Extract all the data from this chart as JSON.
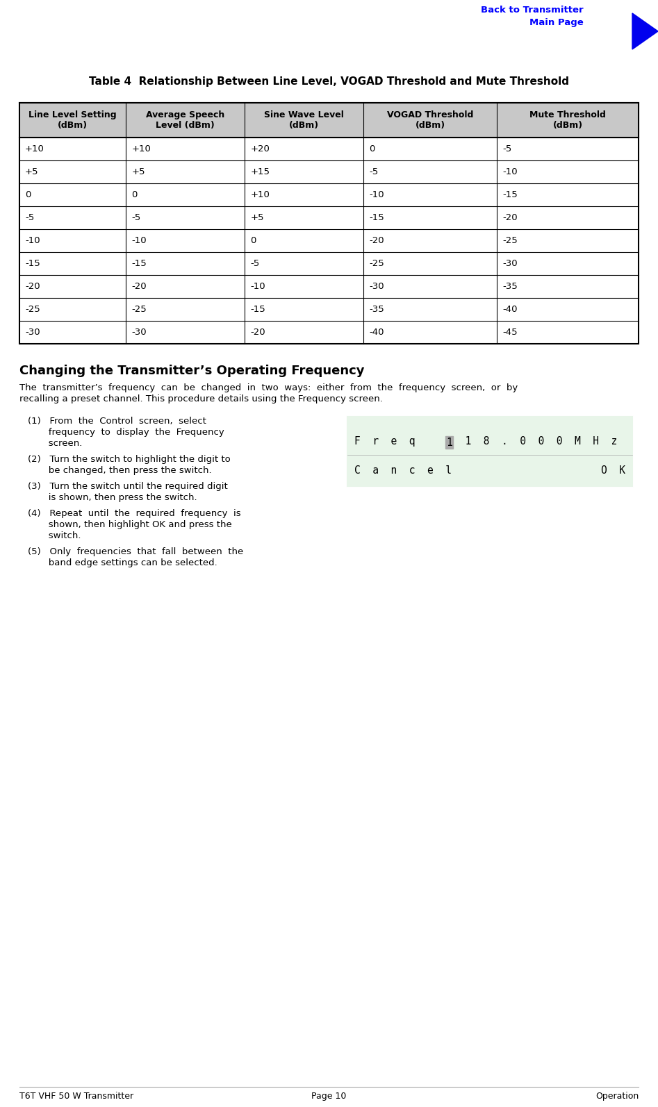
{
  "back_link_text": "Back to Transmitter\nMain Page",
  "back_link_color": "#0000FF",
  "arrow_color": "#0000EE",
  "table_title": "Table 4  Relationship Between Line Level, VOGAD Threshold and Mute Threshold",
  "table_headers": [
    "Line Level Setting\n(dBm)",
    "Average Speech\nLevel (dBm)",
    "Sine Wave Level\n(dBm)",
    "VOGAD Threshold\n(dBm)",
    "Mute Threshold\n(dBm)"
  ],
  "table_data": [
    [
      "+10",
      "+10",
      "+20",
      "0",
      "-5"
    ],
    [
      "+5",
      "+5",
      "+15",
      "-5",
      "-10"
    ],
    [
      "0",
      "0",
      "+10",
      "-10",
      "-15"
    ],
    [
      "-5",
      "-5",
      "+5",
      "-15",
      "-20"
    ],
    [
      "-10",
      "-10",
      "0",
      "-20",
      "-25"
    ],
    [
      "-15",
      "-15",
      "-5",
      "-25",
      "-30"
    ],
    [
      "-20",
      "-20",
      "-10",
      "-30",
      "-35"
    ],
    [
      "-25",
      "-25",
      "-15",
      "-35",
      "-40"
    ],
    [
      "-30",
      "-30",
      "-20",
      "-40",
      "-45"
    ]
  ],
  "header_bg": "#C8C8C8",
  "section_title": "Changing the Transmitter’s Operating Frequency",
  "footer_left": "T6T VHF 50 W Transmitter",
  "footer_center": "Page 10",
  "footer_right": "Operation",
  "bg_color": "#FFFFFF",
  "lcd_bg": "#E8F5E9",
  "lcd_highlight_bg": "#AAAAAA",
  "lcd_border": "#000000"
}
